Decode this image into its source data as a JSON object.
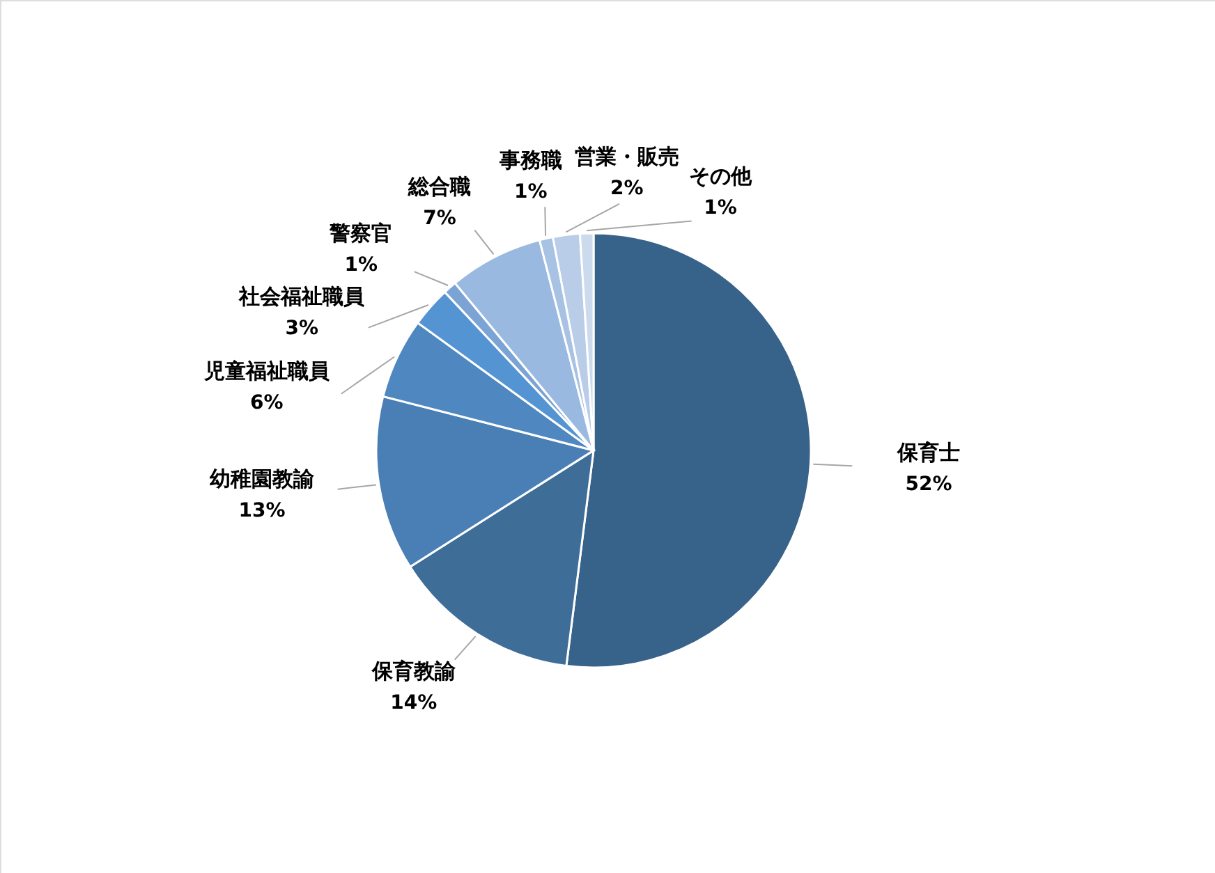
{
  "chart_data": {
    "type": "pie",
    "categories": [
      "保育士",
      "保育教諭",
      "幼稚園教諭",
      "児童福祉職員",
      "社会福祉職員",
      "警察官",
      "総合職",
      "事務職",
      "営業・販売",
      "その他"
    ],
    "values": [
      52,
      14,
      13,
      6,
      3,
      1,
      7,
      1,
      2,
      1
    ],
    "value_labels": [
      "52%",
      "14%",
      "13%",
      "6%",
      "3%",
      "1%",
      "7%",
      "1%",
      "2%",
      "1%"
    ],
    "colors": [
      "#376289",
      "#3e6d98",
      "#4a7fb5",
      "#4f87c0",
      "#5594d2",
      "#7ba3d4",
      "#9ab9e0",
      "#a8c2e4",
      "#b9cde8",
      "#ccdaee"
    ]
  }
}
